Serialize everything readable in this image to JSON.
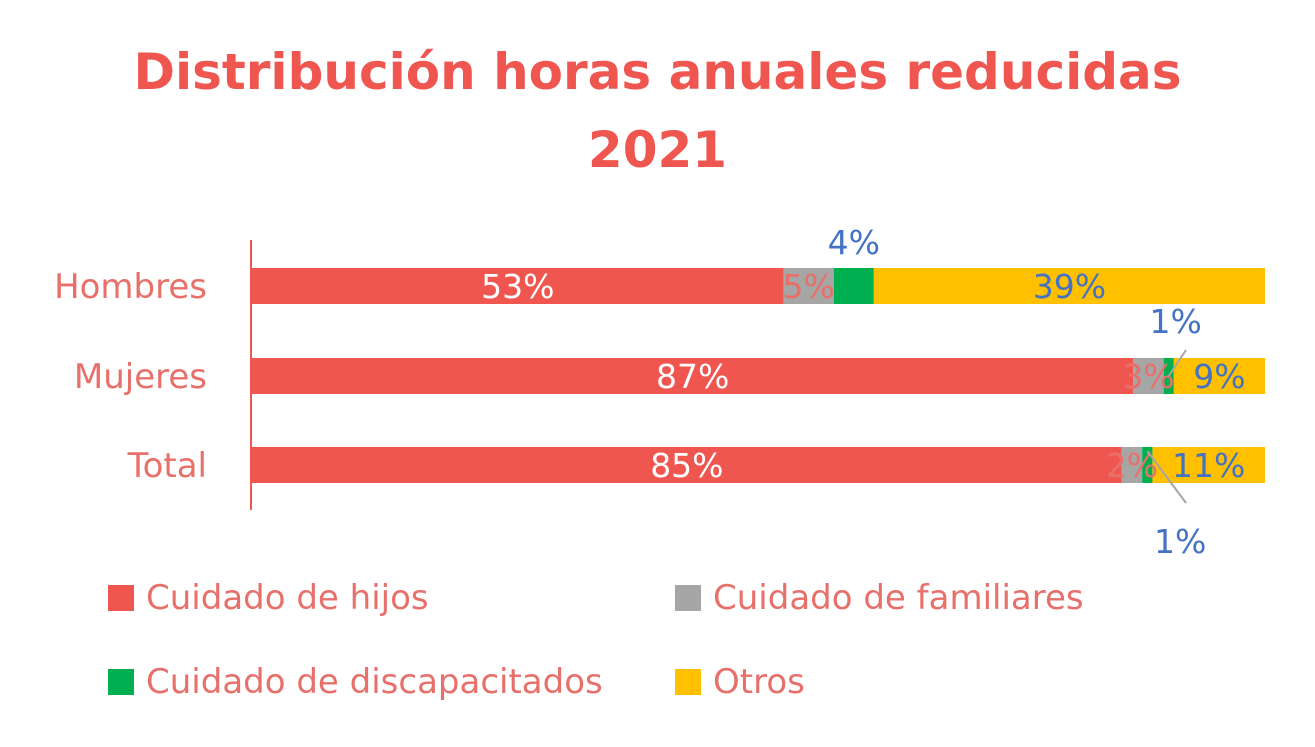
{
  "colors": {
    "title": "#f05650",
    "category_label": "#e8706b",
    "axis_line": "#f05650",
    "leader_line": "#a6a6a6"
  },
  "chart_data": {
    "type": "bar",
    "orientation": "horizontal",
    "stacked": "percent",
    "title_lines": [
      "Distribución horas anuales reducidas",
      "2021"
    ],
    "categories": [
      "Hombres",
      "Mujeres",
      "Total"
    ],
    "series": [
      {
        "name": "Cuidado de hijos",
        "color": "#f05650",
        "values": [
          53,
          87,
          85
        ],
        "labels": [
          "53%",
          "87%",
          "85%"
        ],
        "label_color": "#ffffff"
      },
      {
        "name": "Cuidado de familiares",
        "color": "#a6a6a6",
        "values": [
          5,
          3,
          2
        ],
        "labels": [
          "5%",
          "3%",
          "2%"
        ],
        "label_color": "#e8706b"
      },
      {
        "name": "Cuidado de discapacitados",
        "color": "#00b050",
        "values": [
          4,
          1,
          1
        ],
        "labels": [
          "4%",
          "1%",
          "1%"
        ],
        "label_color": "#4472c4"
      },
      {
        "name": "Otros",
        "color": "#ffc000",
        "values": [
          39,
          9,
          11
        ],
        "labels": [
          "39%",
          "9%",
          "11%"
        ],
        "label_color": "#4472c4"
      }
    ],
    "xlim": [
      0,
      100
    ],
    "gridlines": false,
    "legend_position": "bottom"
  }
}
